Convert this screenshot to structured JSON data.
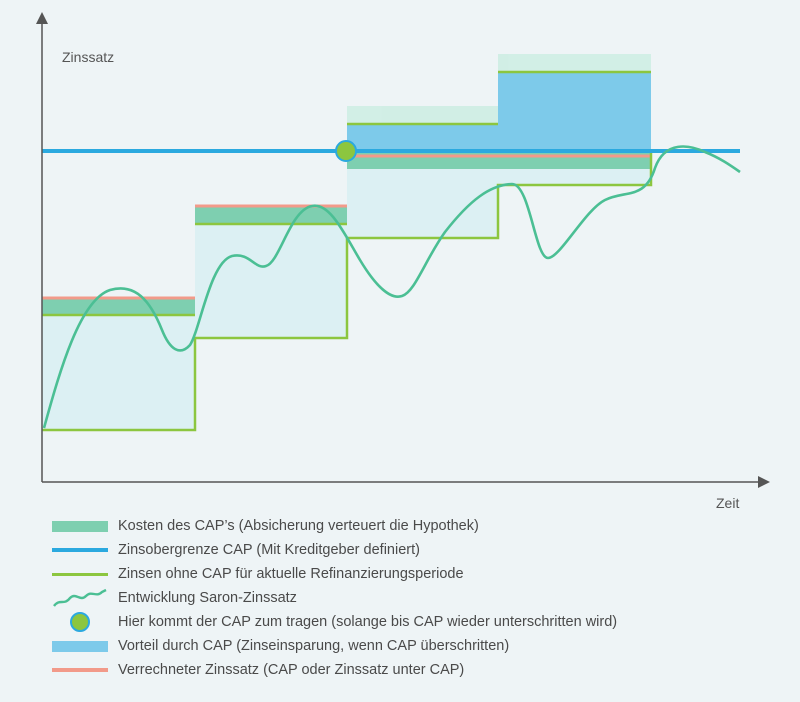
{
  "axes": {
    "y_label": "Zinssatz",
    "x_label": "Zeit"
  },
  "colors": {
    "cap_cost": "#7ecfb0",
    "cap_line": "#2ba9df",
    "interest_no_cap": "#8cc63f",
    "saron": "#4bbf94",
    "cap_marker_fill": "#8cc63f",
    "benefit": "#7dcaea",
    "effective_rate": "#f29a8a",
    "area_fill": "#dcf0f3"
  },
  "legend": [
    {
      "swatch": "rect",
      "color_key": "cap_cost",
      "label": "Kosten des CAP’s (Absicherung verteuert die Hypothek)"
    },
    {
      "swatch": "line",
      "color_key": "cap_line",
      "label": "Zinsobergrenze CAP (Mit Kreditgeber definiert)"
    },
    {
      "swatch": "line",
      "color_key": "interest_no_cap",
      "label": "Zinsen ohne CAP für aktuelle Refinanzierungsperiode"
    },
    {
      "swatch": "wave",
      "color_key": "saron",
      "label": "Entwicklung Saron-Zinssatz"
    },
    {
      "swatch": "dot",
      "color_key": "cap_marker_fill",
      "label": "Hier kommt der CAP zum tragen (solange bis CAP wieder unterschritten wird)"
    },
    {
      "swatch": "rect",
      "color_key": "benefit",
      "label": "Vorteil durch CAP (Zinseinsparung, wenn CAP überschritten)"
    },
    {
      "swatch": "line",
      "color_key": "effective_rate",
      "label": "Verrechneter Zinssatz (CAP oder Zinssatz unter CAP)"
    }
  ]
}
